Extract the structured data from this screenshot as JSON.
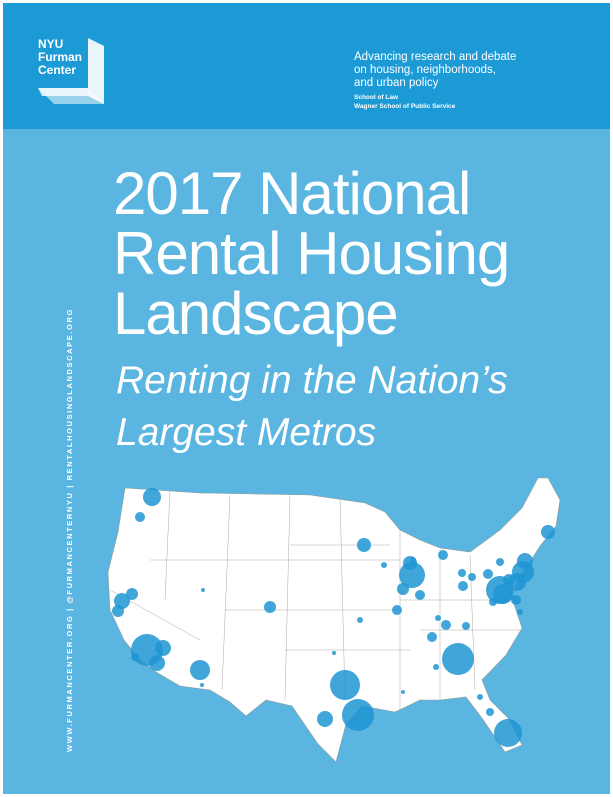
{
  "header": {
    "logo": [
      "NYU",
      "Furman",
      "Center"
    ],
    "tagline": [
      "Advancing research and debate",
      "on housing, neighborhoods,",
      "and urban policy"
    ],
    "schools": [
      "School of Law",
      "Wagner School of Public Service"
    ]
  },
  "title": [
    "2017 National",
    "Rental Housing",
    "Landscape"
  ],
  "subtitle": [
    "Renting in the Nation’s",
    "Largest Metros"
  ],
  "side_text": "WWW.FURMANCENTER.ORG | @FURMANCENTERNYU | RENTALHOUSINGLANDSCAPE.ORG"
}
